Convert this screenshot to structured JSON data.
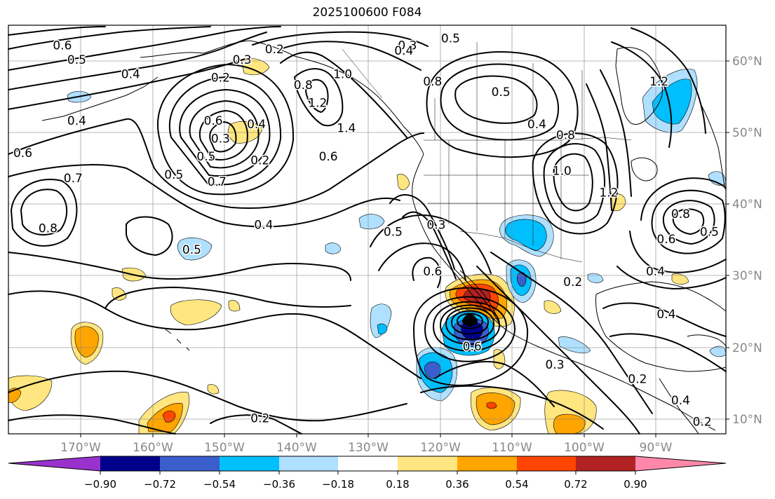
{
  "title": "2025100600 F084",
  "lon_ticks": [
    "170°W",
    "160°W",
    "150°W",
    "140°W",
    "130°W",
    "120°W",
    "110°W",
    "100°W",
    "90°W"
  ],
  "lat_ticks": [
    "60°N",
    "50°N",
    "40°N",
    "30°N",
    "20°N",
    "10°N"
  ],
  "colorbar": {
    "colors": [
      "#9932cc",
      "#00008b",
      "#3a5fcd",
      "#00bfff",
      "#b0e0ff",
      "#ffffff",
      "#ffe680",
      "#ffa500",
      "#ff4500",
      "#b22222",
      "#ff88aa"
    ],
    "tick_labels": [
      "−0.90",
      "−0.72",
      "−0.54",
      "−0.36",
      "−0.18",
      "0.18",
      "0.36",
      "0.54",
      "0.72",
      "0.90"
    ]
  },
  "contour_labels": [
    {
      "text": "0.6",
      "lon": -172.5,
      "lat": 62.0
    },
    {
      "text": "0.5",
      "lon": -170.5,
      "lat": 60.0
    },
    {
      "text": "0.4",
      "lon": -163.0,
      "lat": 58.0
    },
    {
      "text": "0.2",
      "lon": -150.5,
      "lat": 57.5
    },
    {
      "text": "0.3",
      "lon": -147.5,
      "lat": 60.0
    },
    {
      "text": "0.2",
      "lon": -143.0,
      "lat": 61.5
    },
    {
      "text": "0.3",
      "lon": -124.5,
      "lat": 62.0
    },
    {
      "text": "0.4",
      "lon": -125.0,
      "lat": 61.3
    },
    {
      "text": "0.8",
      "lon": -139.0,
      "lat": 56.5
    },
    {
      "text": "1.0",
      "lon": -133.5,
      "lat": 58.0
    },
    {
      "text": "1.2",
      "lon": -137.0,
      "lat": 54.0
    },
    {
      "text": "1.4",
      "lon": -133.0,
      "lat": 50.5
    },
    {
      "text": "0.4",
      "lon": -170.5,
      "lat": 51.5
    },
    {
      "text": "0.6",
      "lon": -151.5,
      "lat": 51.5
    },
    {
      "text": "0.4",
      "lon": -145.5,
      "lat": 51.0
    },
    {
      "text": "0.3",
      "lon": -150.5,
      "lat": 49.0
    },
    {
      "text": "0.5",
      "lon": -152.5,
      "lat": 46.5
    },
    {
      "text": "0.2",
      "lon": -145.0,
      "lat": 46.0
    },
    {
      "text": "0.6",
      "lon": -178.0,
      "lat": 47.0
    },
    {
      "text": "0.7",
      "lon": -171.0,
      "lat": 43.5
    },
    {
      "text": "0.5",
      "lon": -157.0,
      "lat": 44.0
    },
    {
      "text": "0.7",
      "lon": -151.0,
      "lat": 43.0
    },
    {
      "text": "0.6",
      "lon": -135.5,
      "lat": 46.5
    },
    {
      "text": "0.8",
      "lon": -174.5,
      "lat": 36.5
    },
    {
      "text": "0.4",
      "lon": -144.5,
      "lat": 37.0
    },
    {
      "text": "0.5",
      "lon": -154.5,
      "lat": 33.5
    },
    {
      "text": "0.5",
      "lon": -118.5,
      "lat": 63.0
    },
    {
      "text": "0.8",
      "lon": -121.0,
      "lat": 57.0
    },
    {
      "text": "0.5",
      "lon": -111.5,
      "lat": 55.5
    },
    {
      "text": "0.4",
      "lon": -106.5,
      "lat": 51.0
    },
    {
      "text": "0.8",
      "lon": -102.5,
      "lat": 49.5
    },
    {
      "text": "1.0",
      "lon": -103.0,
      "lat": 44.5
    },
    {
      "text": "1.2",
      "lon": -96.5,
      "lat": 41.5
    },
    {
      "text": "0.5",
      "lon": -126.5,
      "lat": 36.0
    },
    {
      "text": "0.3",
      "lon": -120.5,
      "lat": 37.0
    },
    {
      "text": "0.6",
      "lon": -121.0,
      "lat": 30.5
    },
    {
      "text": "0.2",
      "lon": -101.5,
      "lat": 29.0
    },
    {
      "text": "1.2",
      "lon": -89.5,
      "lat": 57.0
    },
    {
      "text": "0.4",
      "lon": -90.0,
      "lat": 30.5
    },
    {
      "text": "0.6",
      "lon": -88.5,
      "lat": 35.0
    },
    {
      "text": "0.8",
      "lon": -86.5,
      "lat": 38.5
    },
    {
      "text": "0.5",
      "lon": -82.5,
      "lat": 36.0
    },
    {
      "text": "0.4",
      "lon": -88.5,
      "lat": 24.5
    },
    {
      "text": "0.3",
      "lon": -104.0,
      "lat": 17.5
    },
    {
      "text": "0.2",
      "lon": -92.5,
      "lat": 15.5
    },
    {
      "text": "0.4",
      "lon": -86.5,
      "lat": 12.5
    },
    {
      "text": "0.2",
      "lon": -83.5,
      "lat": 9.5
    },
    {
      "text": "0.2",
      "lon": -145.0,
      "lat": 10.0
    },
    {
      "text": "0.6",
      "lon": -115.5,
      "lat": 20.0
    }
  ]
}
